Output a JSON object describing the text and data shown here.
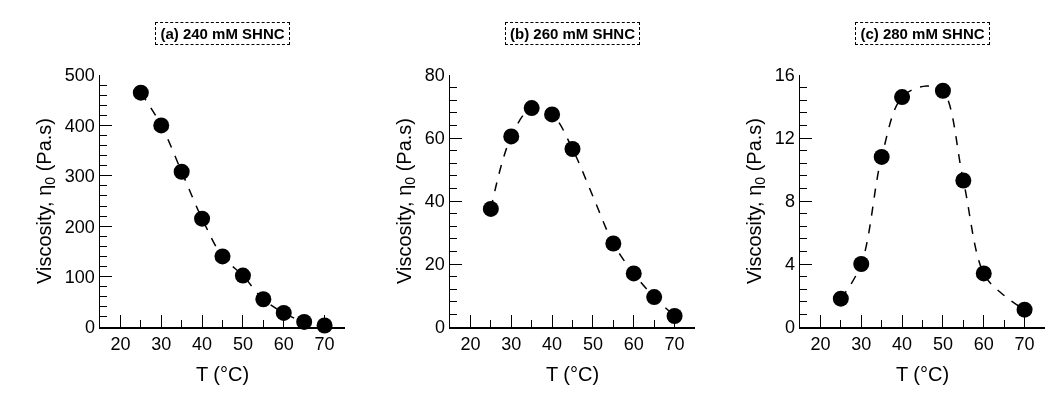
{
  "chart_data": [
    {
      "type": "scatter",
      "title": "(a) 240 mM SHNC",
      "xlabel": "T (°C)",
      "ylabel": "Viscosity, η$_{0}$ (Pa.s)",
      "xlim": [
        15,
        75
      ],
      "xticks": [
        20,
        30,
        40,
        50,
        60,
        70
      ],
      "ylim": [
        0,
        500
      ],
      "yticks": [
        0,
        100,
        200,
        300,
        400,
        500
      ],
      "grid": false,
      "series": [
        {
          "type": "line",
          "color": "#000000",
          "line_style": "dashed",
          "marker": "none",
          "x": [
            25,
            30,
            35,
            40,
            45,
            50,
            55,
            60,
            65,
            70
          ],
          "values": [
            465,
            400,
            308,
            215,
            140,
            102,
            55,
            28,
            10,
            3
          ]
        },
        {
          "color": "#000000",
          "marker": "circle",
          "x": [
            25,
            30,
            35,
            40,
            45,
            50,
            55,
            60,
            65,
            70
          ],
          "values": [
            465,
            400,
            308,
            215,
            140,
            102,
            55,
            28,
            10,
            3
          ]
        }
      ]
    },
    {
      "type": "scatter",
      "title": "(b) 260 mM SHNC",
      "xlabel": "T (°C)",
      "ylabel": "Viscosity, η$_{0}$ (Pa.s)",
      "xlim": [
        15,
        75
      ],
      "xticks": [
        20,
        30,
        40,
        50,
        60,
        70
      ],
      "ylim": [
        0,
        80
      ],
      "yticks": [
        0,
        20,
        40,
        60,
        80
      ],
      "grid": false,
      "series": [
        {
          "type": "line",
          "color": "#000000",
          "line_style": "dashed",
          "marker": "none",
          "x": [
            25,
            30,
            35,
            40,
            45,
            50,
            55,
            60,
            65,
            70
          ],
          "values": [
            37.5,
            60.5,
            69.5,
            67.5,
            56.5,
            41.5,
            26.5,
            17,
            9.5,
            3.5
          ]
        },
        {
          "color": "#000000",
          "marker": "circle",
          "x": [
            25,
            30,
            35,
            40,
            45,
            55,
            60,
            65,
            70
          ],
          "values": [
            37.5,
            60.5,
            69.5,
            67.5,
            56.5,
            26.5,
            17,
            9.5,
            3.5
          ]
        }
      ]
    },
    {
      "type": "scatter",
      "title": "(c) 280 mM SHNC",
      "xlabel": "T (°C)",
      "ylabel": "Viscosity, η$_{0}$ (Pa.s)",
      "xlim": [
        15,
        75
      ],
      "xticks": [
        20,
        30,
        40,
        50,
        60,
        70
      ],
      "ylim": [
        0,
        16
      ],
      "yticks": [
        0,
        4,
        8,
        12,
        16
      ],
      "grid": false,
      "series": [
        {
          "type": "line",
          "color": "#000000",
          "line_style": "dashed",
          "marker": "none",
          "x": [
            25,
            30,
            35,
            40,
            46,
            50,
            55,
            60,
            65,
            70
          ],
          "values": [
            1.8,
            4.0,
            10.8,
            14.6,
            15.3,
            15.0,
            9.3,
            3.4,
            2.0,
            1.1
          ]
        },
        {
          "color": "#000000",
          "marker": "circle",
          "x": [
            25,
            30,
            35,
            40,
            50,
            55,
            60,
            70
          ],
          "values": [
            1.8,
            4.0,
            10.8,
            14.6,
            15.0,
            9.3,
            3.4,
            1.1
          ]
        }
      ]
    }
  ]
}
